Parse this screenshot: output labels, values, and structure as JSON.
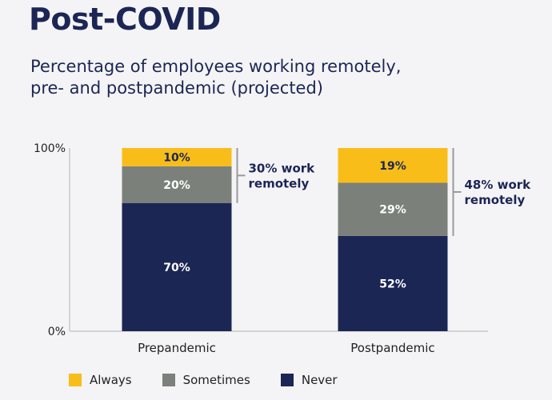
{
  "title": "Post-COVID",
  "subtitle_lines": [
    "Percentage of employees working remotely,",
    "pre- and postpandemic (projected)"
  ],
  "colors": {
    "always": "#f8bd19",
    "sometimes": "#7b807b",
    "never": "#1c2655",
    "text_dark": "#1c2655",
    "bracket": "#9a9a9a"
  },
  "chart_data": {
    "type": "bar",
    "stacked": true,
    "categories": [
      "Prepandemic",
      "Postpandemic"
    ],
    "series": [
      {
        "name": "Never",
        "values": [
          70,
          52
        ],
        "labels": [
          "70%",
          "52%"
        ]
      },
      {
        "name": "Sometimes",
        "values": [
          20,
          29
        ],
        "labels": [
          "20%",
          "29%"
        ]
      },
      {
        "name": "Always",
        "values": [
          10,
          19
        ],
        "labels": [
          "10%",
          "19%"
        ]
      }
    ],
    "ylim": [
      0,
      100
    ],
    "y_tick_labels": [
      "0%",
      "100%"
    ],
    "annotations": [
      {
        "category": "Prepandemic",
        "lines": [
          "30% work",
          "remotely"
        ]
      },
      {
        "category": "Postpandemic",
        "lines": [
          "48% work",
          "remotely"
        ]
      }
    ],
    "legend": [
      "Always",
      "Sometimes",
      "Never"
    ],
    "legend_position": "bottom",
    "grid": false
  }
}
